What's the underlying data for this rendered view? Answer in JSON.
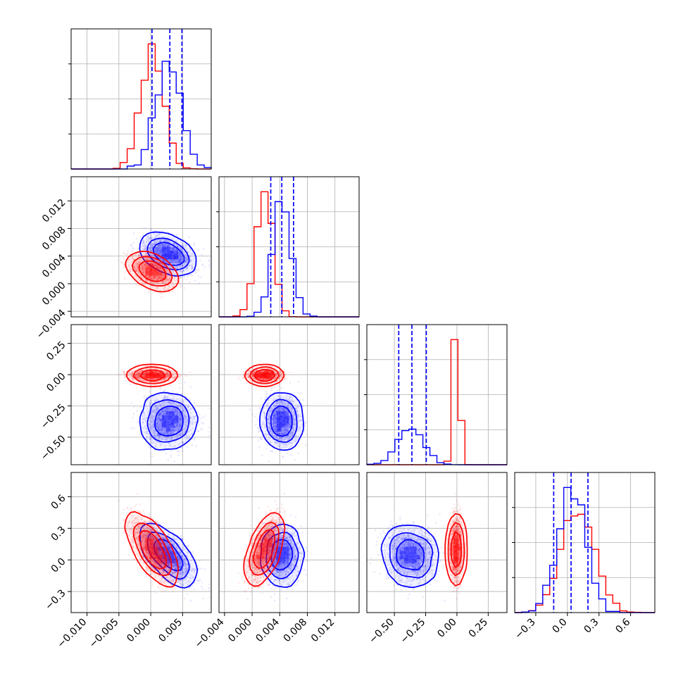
{
  "chart_data": {
    "type": "corner",
    "grid": true,
    "colors": {
      "A": "#ff0000",
      "B": "#0000ff",
      "quantile_lines": "#0000ff"
    },
    "series": [
      {
        "key": "A"
      },
      {
        "key": "B"
      }
    ],
    "parameters": [
      {
        "key": "p1",
        "range": [
          -0.0125,
          0.0095
        ],
        "ticks": [
          "−0.010",
          "−0.005",
          "0.000",
          "0.005"
        ],
        "tick_values": [
          -0.01,
          -0.005,
          0,
          0.005
        ]
      },
      {
        "key": "p2",
        "range": [
          -0.0048,
          0.0155
        ],
        "ticks": [
          "−0.004",
          "0.000",
          "0.004",
          "0.008",
          "0.012"
        ],
        "tick_values": [
          -0.004,
          0,
          0.004,
          0.008,
          0.012
        ]
      },
      {
        "key": "p3",
        "range": [
          -0.72,
          0.4
        ],
        "ticks": [
          "−0.50",
          "−0.25",
          "0.00",
          "0.25"
        ],
        "tick_values": [
          -0.5,
          -0.25,
          0,
          0.25
        ]
      },
      {
        "key": "p4",
        "range": [
          -0.5,
          0.83
        ],
        "ticks": [
          "−0.3",
          "0.0",
          "0.3",
          "0.6"
        ],
        "tick_values": [
          -0.3,
          0,
          0.3,
          0.6
        ]
      }
    ],
    "quantiles": {
      "p1": [
        0.0002,
        0.003,
        0.0049
      ],
      "p2": [
        0.0027,
        0.0043,
        0.006
      ],
      "p3": [
        -0.465,
        -0.36,
        -0.245
      ],
      "p4": [
        -0.13,
        0.035,
        0.195
      ]
    },
    "distributions": {
      "A": {
        "mean": [
          0.0003,
          0.0018,
          -0.005,
          0.095
        ],
        "sd": [
          0.0018,
          0.0012,
          0.02,
          0.16
        ],
        "corr": {
          "0-1": -0.5,
          "0-3": -0.7,
          "1-3": 0.6
        }
      },
      "B": {
        "mean": [
          0.0028,
          0.0043,
          -0.37,
          0.04
        ],
        "sd": [
          0.002,
          0.0013,
          0.1,
          0.13
        ],
        "corr": {
          "0-1": -0.4,
          "0-3": -0.65,
          "1-3": -0.05,
          "2-3": -0.1
        }
      }
    }
  }
}
